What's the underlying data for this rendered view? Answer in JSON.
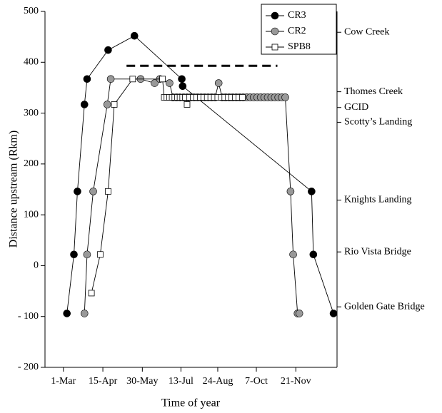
{
  "chart_data": {
    "type": "line",
    "x_label": "Time of year",
    "y_label": "Distance upstream (Rkm)",
    "xlim": [
      39,
      372
    ],
    "ylim": [
      -200,
      500
    ],
    "xticks": [
      {
        "value": 60,
        "label": "1-Mar"
      },
      {
        "value": 105,
        "label": "15-Apr"
      },
      {
        "value": 150,
        "label": "30-May"
      },
      {
        "value": 194,
        "label": "13-Jul"
      },
      {
        "value": 236,
        "label": "24-Aug"
      },
      {
        "value": 280,
        "label": "7-Oct"
      },
      {
        "value": 325,
        "label": "21-Nov"
      }
    ],
    "yticks": [
      {
        "value": -200,
        "label": "- 200"
      },
      {
        "value": -100,
        "label": "- 100"
      },
      0,
      100,
      200,
      300,
      400,
      500
    ],
    "legend": "upper right",
    "right_labels": [
      {
        "value": 459,
        "label": "Cow Creek"
      },
      {
        "value": 342,
        "label": "Thomes Creek"
      },
      {
        "value": 311,
        "label": "GCID"
      },
      {
        "value": 282,
        "label": "Scotty’s Landing"
      },
      {
        "value": 129,
        "label": "Knights Landing"
      },
      {
        "value": 27,
        "label": "Rio Vista Bridge"
      },
      {
        "value": -81,
        "label": "Golden Gate Bridge"
      }
    ],
    "reference_line": {
      "y": 393,
      "x": [
        132,
        304
      ]
    },
    "series": [
      {
        "name": "CR3",
        "color": "#000000",
        "marker": "circle",
        "x": [
          64,
          72,
          76,
          84,
          87,
          111,
          141,
          195,
          196,
          343,
          345,
          368
        ],
        "values": [
          -94,
          22,
          146,
          317,
          367,
          424,
          452,
          367,
          353,
          146,
          22,
          -94
        ]
      },
      {
        "name": "CR2",
        "color": "#999999",
        "marker": "circle",
        "x": [
          84,
          87,
          94,
          110,
          114,
          148,
          164,
          170,
          181,
          185,
          189,
          193,
          197,
          201,
          205,
          209,
          213,
          217,
          221,
          225,
          229,
          233,
          237,
          241,
          245,
          249,
          253,
          257,
          261,
          265,
          269,
          273,
          277,
          281,
          285,
          289,
          293,
          297,
          301,
          305,
          309,
          313,
          319,
          322,
          327,
          329
        ],
        "values": [
          -94,
          22,
          146,
          317,
          367,
          367,
          359,
          367,
          359,
          331,
          331,
          331,
          331,
          331,
          331,
          331,
          331,
          331,
          331,
          331,
          331,
          331,
          359,
          331,
          331,
          331,
          331,
          331,
          331,
          331,
          331,
          331,
          331,
          331,
          331,
          331,
          331,
          331,
          331,
          331,
          331,
          331,
          146,
          22,
          -94,
          -94
        ]
      },
      {
        "name": "SPB8",
        "color": "#ffffff",
        "marker": "square",
        "x": [
          92,
          102,
          111,
          118,
          139,
          173,
          175,
          178,
          181,
          184,
          187,
          190,
          193,
          196,
          199,
          201,
          204,
          208,
          212,
          216,
          220,
          224,
          228,
          232,
          236,
          240,
          244,
          248,
          252,
          256,
          260,
          264
        ],
        "values": [
          -54,
          22,
          146,
          317,
          367,
          367,
          331,
          331,
          331,
          331,
          331,
          331,
          331,
          331,
          331,
          317,
          331,
          331,
          331,
          331,
          331,
          331,
          331,
          331,
          331,
          331,
          331,
          331,
          331,
          331,
          331,
          331
        ]
      }
    ]
  }
}
